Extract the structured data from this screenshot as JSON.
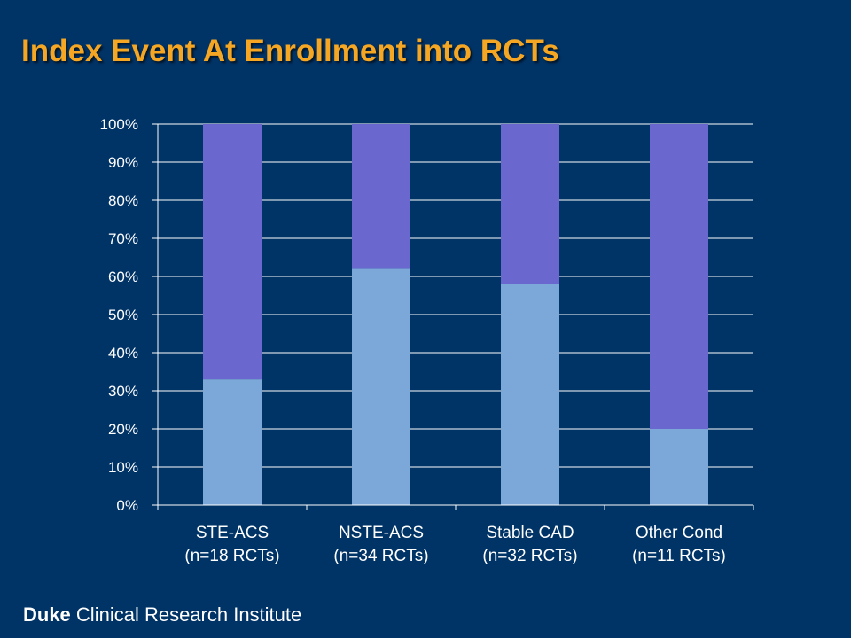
{
  "slide": {
    "title": "Index Event At Enrollment into RCTs",
    "footer_brand": "Duke",
    "footer_text": "Clinical Research Institute"
  },
  "colors": {
    "background": "#003366",
    "title": "#F5A623",
    "series_lower": "#7BA7D9",
    "series_upper": "#6A67CE",
    "text": "#FFFFFF"
  },
  "chart_data": {
    "type": "bar",
    "stacked": true,
    "categories": [
      [
        "STE-ACS",
        "(n=18 RCTs)"
      ],
      [
        "NSTE-ACS",
        "(n=34 RCTs)"
      ],
      [
        "Stable CAD",
        "(n=32 RCTs)"
      ],
      [
        "Other Cond",
        "(n=11 RCTs)"
      ]
    ],
    "series": [
      {
        "values": [
          33,
          62,
          58,
          20
        ],
        "color": "#7BA7D9"
      },
      {
        "values": [
          67,
          38,
          42,
          80
        ],
        "color": "#6A67CE"
      }
    ],
    "ylim": [
      0,
      100
    ],
    "yticks": [
      "0%",
      "10%",
      "20%",
      "30%",
      "40%",
      "50%",
      "60%",
      "70%",
      "80%",
      "90%",
      "100%"
    ],
    "grid": true,
    "legend": "none"
  }
}
